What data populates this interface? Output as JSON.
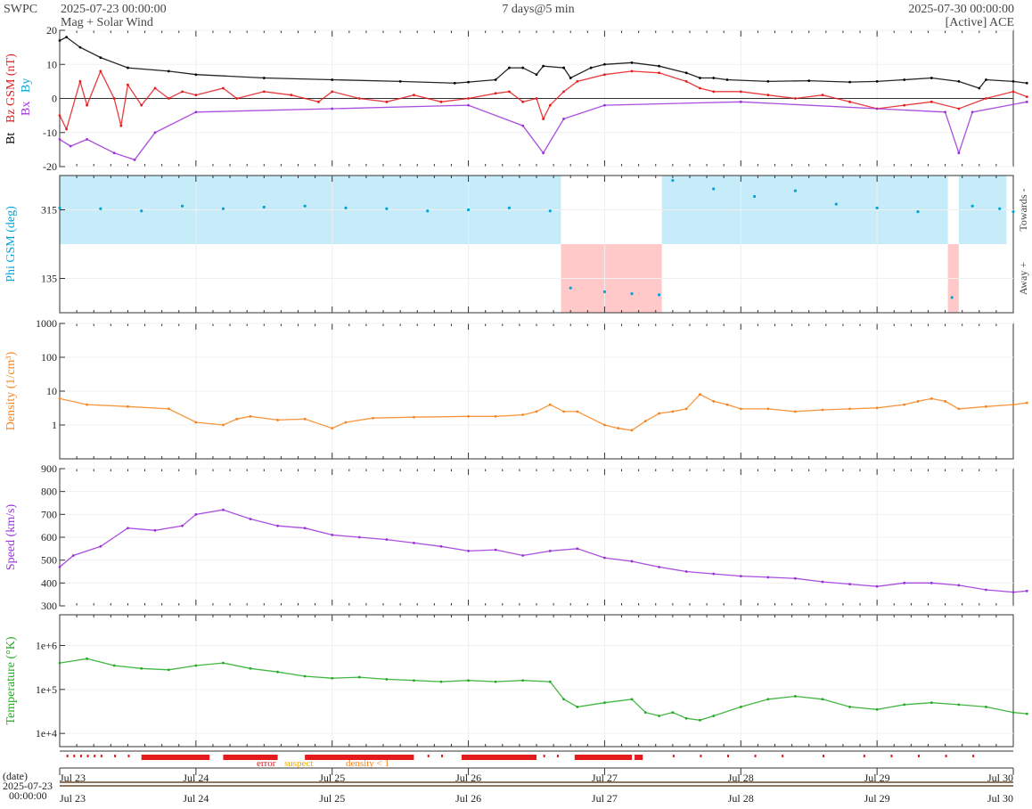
{
  "header": {
    "source": "SWPC",
    "start_time": "2025-07-23 00:00:00",
    "subtitle": "Mag + Solar Wind",
    "span": "7 days@5 min",
    "end_time": "2025-07-30 00:00:00",
    "spacecraft": "[Active] ACE"
  },
  "footer": {
    "date_label": "(date)",
    "date_value": "2025-07-23",
    "time_value": "00:00:00",
    "quality_legend": {
      "error": "error",
      "suspect": "suspect",
      "density": "density < 1"
    }
  },
  "colors": {
    "bt": "#000000",
    "bz": "#e41a1c",
    "by": "#00a5d9",
    "bx": "#9b30d9",
    "towards": "#c6ecfa",
    "away": "#ffc9c9",
    "density": "#f5841f",
    "speed": "#9b30d9",
    "temperature": "#22aa22",
    "error": "#e41a1c",
    "suspect": "#f2a900"
  },
  "chart_data": [
    {
      "type": "line",
      "id": "mag",
      "ylabel_parts": [
        "Bt",
        "Bz GSM (nT)",
        "Bx",
        "By"
      ],
      "ylim": [
        -20,
        20
      ],
      "yticks": [
        -20,
        -10,
        0,
        10,
        20
      ],
      "zero_line": true,
      "x": [
        "Jul 23",
        "Jul 24",
        "Jul 25",
        "Jul 26",
        "Jul 27",
        "Jul 28",
        "Jul 29",
        "Jul 30"
      ],
      "series": [
        {
          "name": "Bt",
          "color_key": "bt",
          "points": [
            [
              0,
              17
            ],
            [
              0.05,
              18
            ],
            [
              0.15,
              15
            ],
            [
              0.3,
              12
            ],
            [
              0.5,
              9
            ],
            [
              0.8,
              8
            ],
            [
              1.0,
              7
            ],
            [
              1.5,
              6
            ],
            [
              2.0,
              5.5
            ],
            [
              2.5,
              5
            ],
            [
              2.9,
              4.5
            ],
            [
              3.0,
              4.8
            ],
            [
              3.2,
              5.5
            ],
            [
              3.3,
              9
            ],
            [
              3.4,
              9
            ],
            [
              3.5,
              7
            ],
            [
              3.55,
              9.5
            ],
            [
              3.7,
              9
            ],
            [
              3.75,
              6
            ],
            [
              3.9,
              9
            ],
            [
              4.0,
              10
            ],
            [
              4.2,
              10.5
            ],
            [
              4.4,
              9.5
            ],
            [
              4.6,
              7.5
            ],
            [
              4.7,
              6
            ],
            [
              4.8,
              6
            ],
            [
              4.9,
              5.5
            ],
            [
              5.2,
              5
            ],
            [
              5.5,
              5.2
            ],
            [
              5.8,
              4.8
            ],
            [
              6.0,
              5
            ],
            [
              6.2,
              5.5
            ],
            [
              6.4,
              6
            ],
            [
              6.6,
              5
            ],
            [
              6.75,
              3
            ],
            [
              6.8,
              5.5
            ],
            [
              7.0,
              5
            ],
            [
              7.1,
              4.5
            ]
          ]
        },
        {
          "name": "Bz GSM",
          "color_key": "bz",
          "points": [
            [
              0,
              -5
            ],
            [
              0.05,
              -9
            ],
            [
              0.15,
              5
            ],
            [
              0.2,
              -2
            ],
            [
              0.3,
              8
            ],
            [
              0.4,
              0
            ],
            [
              0.45,
              -8
            ],
            [
              0.5,
              4
            ],
            [
              0.6,
              -2
            ],
            [
              0.7,
              3
            ],
            [
              0.8,
              0
            ],
            [
              0.9,
              2
            ],
            [
              1.0,
              1
            ],
            [
              1.2,
              3
            ],
            [
              1.3,
              0
            ],
            [
              1.5,
              2
            ],
            [
              1.7,
              1
            ],
            [
              1.9,
              -1
            ],
            [
              2.0,
              2
            ],
            [
              2.2,
              0
            ],
            [
              2.4,
              -1
            ],
            [
              2.6,
              1
            ],
            [
              2.8,
              -1
            ],
            [
              3.0,
              0
            ],
            [
              3.2,
              1.5
            ],
            [
              3.3,
              2
            ],
            [
              3.4,
              -1
            ],
            [
              3.5,
              0
            ],
            [
              3.55,
              -6
            ],
            [
              3.6,
              -2
            ],
            [
              3.7,
              2
            ],
            [
              3.8,
              5
            ],
            [
              4.0,
              7
            ],
            [
              4.2,
              8
            ],
            [
              4.4,
              7.5
            ],
            [
              4.6,
              5
            ],
            [
              4.7,
              3
            ],
            [
              4.8,
              2
            ],
            [
              5.0,
              2
            ],
            [
              5.2,
              1
            ],
            [
              5.4,
              0
            ],
            [
              5.6,
              1
            ],
            [
              5.8,
              -1
            ],
            [
              6.0,
              -3
            ],
            [
              6.2,
              -2
            ],
            [
              6.4,
              -1
            ],
            [
              6.6,
              -3
            ],
            [
              6.8,
              0
            ],
            [
              7.0,
              2
            ],
            [
              7.1,
              0.5
            ]
          ]
        },
        {
          "name": "Bx",
          "color_key": "bx",
          "points": [
            [
              0,
              -12
            ],
            [
              0.08,
              -14
            ],
            [
              0.2,
              -12
            ],
            [
              0.4,
              -16
            ],
            [
              0.55,
              -18
            ],
            [
              0.7,
              -10
            ],
            [
              1.0,
              -4
            ],
            [
              2.0,
              -3
            ],
            [
              3.0,
              -2
            ],
            [
              3.4,
              -8
            ],
            [
              3.55,
              -16
            ],
            [
              3.7,
              -6
            ],
            [
              4.0,
              -2
            ],
            [
              5.0,
              -1
            ],
            [
              6.5,
              -4
            ],
            [
              6.6,
              -16
            ],
            [
              6.7,
              -4
            ],
            [
              7.1,
              -1
            ]
          ]
        }
      ],
      "right_labels": []
    },
    {
      "type": "scatter",
      "id": "phi",
      "ylabel": "Phi GSM (deg)",
      "ylim": [
        45,
        405
      ],
      "yticks": [
        135,
        315
      ],
      "right_labels": [
        "Towards -",
        "Away +"
      ],
      "regions": [
        {
          "sector": "towards",
          "from": 0.0,
          "to": 3.68
        },
        {
          "sector": "away",
          "from": 3.68,
          "to": 4.42
        },
        {
          "sector": "towards",
          "from": 4.42,
          "to": 6.52
        },
        {
          "sector": "away",
          "from": 6.52,
          "to": 6.6
        },
        {
          "sector": "towards",
          "from": 6.6,
          "to": 6.95
        }
      ],
      "points": [
        [
          0,
          320
        ],
        [
          0.3,
          318
        ],
        [
          0.6,
          312
        ],
        [
          0.9,
          325
        ],
        [
          1.2,
          318
        ],
        [
          1.5,
          322
        ],
        [
          1.8,
          325
        ],
        [
          2.1,
          320
        ],
        [
          2.4,
          318
        ],
        [
          2.7,
          312
        ],
        [
          3.0,
          315
        ],
        [
          3.3,
          320
        ],
        [
          3.6,
          312
        ],
        [
          3.75,
          110
        ],
        [
          4.0,
          100
        ],
        [
          4.2,
          95
        ],
        [
          4.4,
          92
        ],
        [
          4.5,
          392
        ],
        [
          4.8,
          370
        ],
        [
          5.1,
          350
        ],
        [
          5.4,
          365
        ],
        [
          5.7,
          330
        ],
        [
          6.0,
          320
        ],
        [
          6.3,
          310
        ],
        [
          6.55,
          85
        ],
        [
          6.7,
          325
        ],
        [
          6.9,
          318
        ],
        [
          7.0,
          310
        ]
      ]
    },
    {
      "type": "line",
      "id": "density",
      "ylabel": "Density (1/cm³)",
      "scale": "log",
      "ylim": [
        0.1,
        1000
      ],
      "yticks": [
        1,
        10,
        100,
        1000
      ],
      "right_labels": [],
      "points": [
        [
          0,
          6
        ],
        [
          0.2,
          4
        ],
        [
          0.5,
          3.5
        ],
        [
          0.8,
          3
        ],
        [
          1.0,
          1.2
        ],
        [
          1.2,
          1
        ],
        [
          1.3,
          1.5
        ],
        [
          1.4,
          1.8
        ],
        [
          1.6,
          1.4
        ],
        [
          1.8,
          1.5
        ],
        [
          2.0,
          0.8
        ],
        [
          2.1,
          1.2
        ],
        [
          2.3,
          1.6
        ],
        [
          2.6,
          1.7
        ],
        [
          3.0,
          1.8
        ],
        [
          3.2,
          1.8
        ],
        [
          3.4,
          2
        ],
        [
          3.5,
          2.5
        ],
        [
          3.6,
          4
        ],
        [
          3.7,
          2.5
        ],
        [
          3.8,
          2.5
        ],
        [
          4.0,
          1
        ],
        [
          4.1,
          0.8
        ],
        [
          4.2,
          0.7
        ],
        [
          4.3,
          1.3
        ],
        [
          4.4,
          2.2
        ],
        [
          4.5,
          2.5
        ],
        [
          4.6,
          3
        ],
        [
          4.7,
          8
        ],
        [
          4.8,
          5
        ],
        [
          4.9,
          4
        ],
        [
          5.0,
          3
        ],
        [
          5.2,
          3
        ],
        [
          5.4,
          2.5
        ],
        [
          5.6,
          2.8
        ],
        [
          5.8,
          3
        ],
        [
          6.0,
          3.2
        ],
        [
          6.2,
          4
        ],
        [
          6.3,
          5
        ],
        [
          6.4,
          6
        ],
        [
          6.5,
          5
        ],
        [
          6.6,
          3
        ],
        [
          6.8,
          3.5
        ],
        [
          7.0,
          4
        ],
        [
          7.1,
          4.5
        ]
      ]
    },
    {
      "type": "line",
      "id": "speed",
      "ylabel": "Speed (km/s)",
      "ylim": [
        300,
        900
      ],
      "yticks": [
        300,
        400,
        500,
        600,
        700,
        800,
        900
      ],
      "right_labels": [],
      "points": [
        [
          0,
          470
        ],
        [
          0.1,
          520
        ],
        [
          0.3,
          560
        ],
        [
          0.5,
          640
        ],
        [
          0.7,
          630
        ],
        [
          0.9,
          650
        ],
        [
          1.0,
          700
        ],
        [
          1.2,
          720
        ],
        [
          1.4,
          680
        ],
        [
          1.6,
          650
        ],
        [
          1.8,
          640
        ],
        [
          2.0,
          610
        ],
        [
          2.2,
          600
        ],
        [
          2.4,
          590
        ],
        [
          2.6,
          575
        ],
        [
          2.8,
          560
        ],
        [
          3.0,
          540
        ],
        [
          3.2,
          545
        ],
        [
          3.4,
          520
        ],
        [
          3.6,
          540
        ],
        [
          3.8,
          550
        ],
        [
          4.0,
          510
        ],
        [
          4.2,
          495
        ],
        [
          4.4,
          470
        ],
        [
          4.6,
          450
        ],
        [
          4.8,
          440
        ],
        [
          5.0,
          430
        ],
        [
          5.2,
          425
        ],
        [
          5.4,
          420
        ],
        [
          5.6,
          405
        ],
        [
          5.8,
          395
        ],
        [
          6.0,
          385
        ],
        [
          6.2,
          400
        ],
        [
          6.4,
          400
        ],
        [
          6.6,
          390
        ],
        [
          6.8,
          370
        ],
        [
          7.0,
          360
        ],
        [
          7.1,
          365
        ]
      ]
    },
    {
      "type": "line",
      "id": "temperature",
      "ylabel": "Temperature (°K)",
      "scale": "log",
      "ylim": [
        5000,
        5000000
      ],
      "yticks": [
        10000,
        100000,
        1000000
      ],
      "ytick_labels": [
        "1e+4",
        "1e+5",
        "1e+6"
      ],
      "right_labels": [],
      "points": [
        [
          0,
          400000
        ],
        [
          0.2,
          500000
        ],
        [
          0.4,
          350000
        ],
        [
          0.6,
          300000
        ],
        [
          0.8,
          280000
        ],
        [
          1.0,
          350000
        ],
        [
          1.2,
          400000
        ],
        [
          1.4,
          300000
        ],
        [
          1.6,
          250000
        ],
        [
          1.8,
          200000
        ],
        [
          2.0,
          180000
        ],
        [
          2.2,
          190000
        ],
        [
          2.4,
          170000
        ],
        [
          2.6,
          160000
        ],
        [
          2.8,
          150000
        ],
        [
          3.0,
          160000
        ],
        [
          3.2,
          150000
        ],
        [
          3.4,
          160000
        ],
        [
          3.6,
          150000
        ],
        [
          3.7,
          60000
        ],
        [
          3.8,
          40000
        ],
        [
          4.0,
          50000
        ],
        [
          4.2,
          60000
        ],
        [
          4.3,
          30000
        ],
        [
          4.4,
          25000
        ],
        [
          4.5,
          30000
        ],
        [
          4.6,
          22000
        ],
        [
          4.7,
          20000
        ],
        [
          4.8,
          25000
        ],
        [
          5.0,
          40000
        ],
        [
          5.2,
          60000
        ],
        [
          5.4,
          70000
        ],
        [
          5.6,
          60000
        ],
        [
          5.8,
          40000
        ],
        [
          6.0,
          35000
        ],
        [
          6.2,
          45000
        ],
        [
          6.4,
          50000
        ],
        [
          6.6,
          45000
        ],
        [
          6.8,
          40000
        ],
        [
          7.0,
          30000
        ],
        [
          7.1,
          28000
        ]
      ]
    }
  ],
  "quality_flags": {
    "error_ranges": [
      [
        0.6,
        1.1
      ],
      [
        1.2,
        1.6
      ],
      [
        1.8,
        2.6
      ],
      [
        2.95,
        3.5
      ],
      [
        3.78,
        4.2
      ],
      [
        4.22,
        4.28
      ]
    ],
    "error_ticks": [
      0.05,
      0.1,
      0.15,
      0.2,
      0.25,
      0.3,
      0.4,
      0.5,
      2.7,
      2.8,
      3.55,
      3.65,
      4.5,
      4.7,
      4.9,
      5.1,
      5.3,
      5.6,
      5.9,
      6.1,
      6.3,
      6.5,
      6.7
    ]
  }
}
